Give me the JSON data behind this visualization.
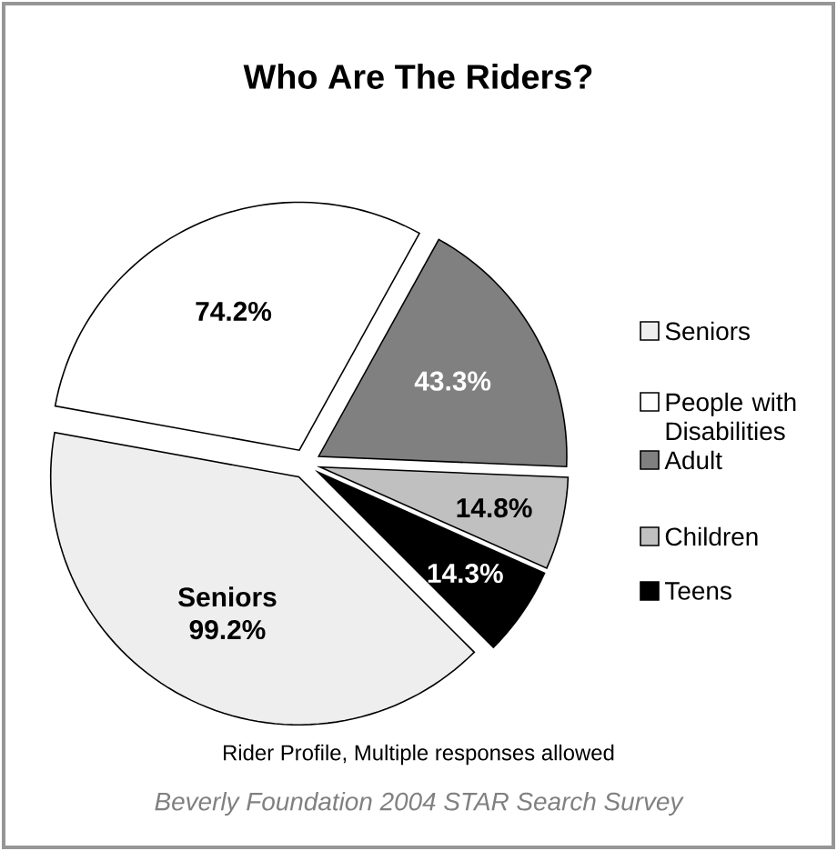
{
  "chart_data": {
    "type": "pie",
    "title": "Who Are The Riders?",
    "categories": [
      "Seniors",
      "People with Disabilities",
      "Adult",
      "Children",
      "Teens"
    ],
    "values": [
      99.2,
      74.2,
      43.3,
      14.8,
      14.3
    ],
    "colors": [
      "#eeeeee",
      "#ffffff",
      "#808080",
      "#c0c0c0",
      "#000000"
    ],
    "value_labels": [
      "Seniors 99.2%",
      "74.2%",
      "43.3%",
      "14.8%",
      "14.3%"
    ],
    "legend": "right",
    "annotations": [
      "Rider Profile, Multiple responses allowed",
      "Beverly Foundation 2004 STAR Search Survey"
    ]
  }
}
